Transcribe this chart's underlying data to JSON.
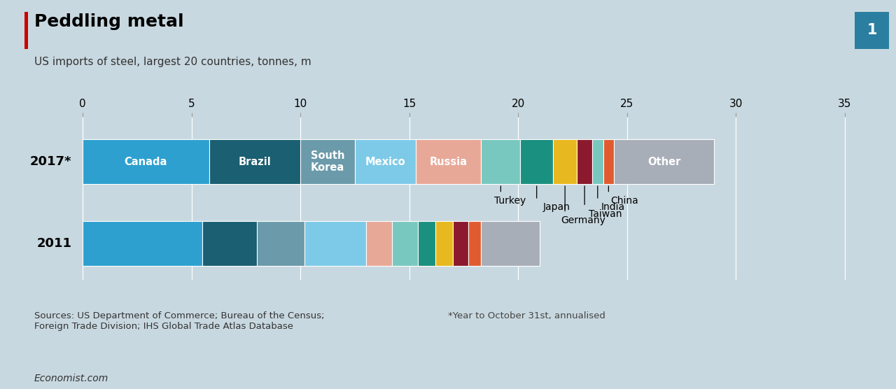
{
  "title": "Peddling metal",
  "subtitle": "US imports of steel, largest 20 countries, tonnes, m",
  "source_left": "Sources: US Department of Commerce; Bureau of the Census;\nForeign Trade Division; IHS Global Trade Atlas Database",
  "source_right": "*Year to October 31st, annualised",
  "footer": "Economist.com",
  "xlim": [
    0,
    35
  ],
  "xticks": [
    0,
    5,
    10,
    15,
    20,
    25,
    30,
    35
  ],
  "bg_color": "#c8d8e0",
  "bar_height": 0.55,
  "year_2017": {
    "label": "2017*",
    "segments": [
      {
        "country": "Canada",
        "value": 5.8,
        "color": "#2ea0d0",
        "label_in_bar": true
      },
      {
        "country": "Brazil",
        "value": 4.2,
        "color": "#1a5f72",
        "label_in_bar": true
      },
      {
        "country": "South\nKorea",
        "value": 2.5,
        "color": "#6b9aaa",
        "label_in_bar": true
      },
      {
        "country": "Mexico",
        "value": 2.8,
        "color": "#7dcae8",
        "label_in_bar": true
      },
      {
        "country": "Russia",
        "value": 3.0,
        "color": "#e8a898",
        "label_in_bar": true
      },
      {
        "country": "Turkey",
        "value": 1.8,
        "color": "#78c8c0",
        "label_in_bar": false
      },
      {
        "country": "Japan",
        "value": 1.5,
        "color": "#1a9080",
        "label_in_bar": false
      },
      {
        "country": "Germany",
        "value": 1.1,
        "color": "#e8b820",
        "label_in_bar": false
      },
      {
        "country": "Taiwan",
        "value": 0.7,
        "color": "#8b1a2e",
        "label_in_bar": false
      },
      {
        "country": "India",
        "value": 0.5,
        "color": "#78c8c0",
        "label_in_bar": false
      },
      {
        "country": "China",
        "value": 0.5,
        "color": "#e05c30",
        "label_in_bar": false
      },
      {
        "country": "Other",
        "value": 4.6,
        "color": "#a8aeb8",
        "label_in_bar": true
      }
    ]
  },
  "year_2011": {
    "label": "2011",
    "segments": [
      {
        "country": "Canada",
        "value": 5.5,
        "color": "#2ea0d0"
      },
      {
        "country": "Brazil",
        "value": 2.5,
        "color": "#1a5f72"
      },
      {
        "country": "South Korea",
        "value": 2.2,
        "color": "#6b9aaa"
      },
      {
        "country": "Mexico",
        "value": 2.8,
        "color": "#7dcae8"
      },
      {
        "country": "Russia",
        "value": 1.2,
        "color": "#e8a898"
      },
      {
        "country": "Turkey",
        "value": 1.2,
        "color": "#78c8c0"
      },
      {
        "country": "Japan",
        "value": 0.8,
        "color": "#1a9080"
      },
      {
        "country": "Germany",
        "value": 0.8,
        "color": "#e8b820"
      },
      {
        "country": "Taiwan",
        "value": 0.7,
        "color": "#8b1a2e"
      },
      {
        "country": "India",
        "value": 0.6,
        "color": "#e05c30"
      },
      {
        "country": "Other",
        "value": 2.7,
        "color": "#a8aeb8"
      }
    ]
  },
  "chart_number": "1"
}
